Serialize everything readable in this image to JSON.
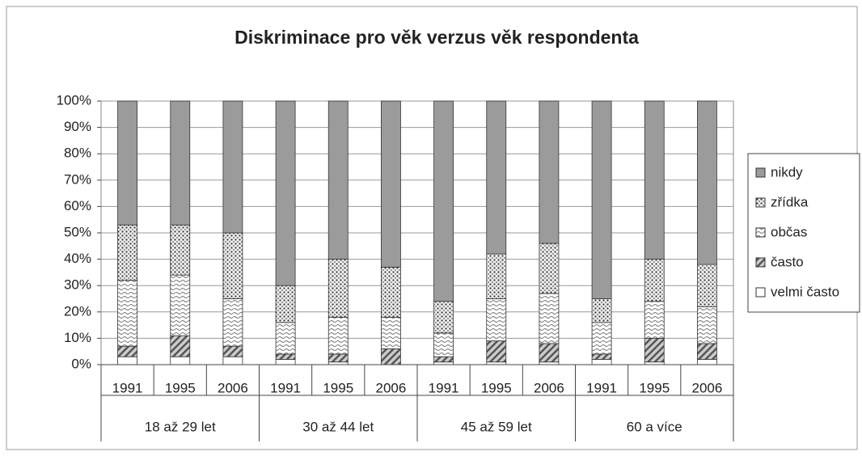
{
  "chart_data": {
    "type": "stacked_bar",
    "title": "Diskriminace pro věk verzus věk respondenta",
    "categories": [
      "1991",
      "1995",
      "2006",
      "1991",
      "1995",
      "2006",
      "1991",
      "1995",
      "2006",
      "1991",
      "1995",
      "2006"
    ],
    "groups": [
      "18 až 29 let",
      "30 až 44 let",
      "45 až 59 let",
      "60 a více"
    ],
    "series": [
      {
        "name": "velmi často",
        "color": "#ffffff",
        "pattern": "none",
        "values": [
          3,
          3,
          3,
          2,
          1,
          0,
          1,
          1,
          1,
          2,
          1,
          2
        ]
      },
      {
        "name": "často",
        "color": "#8a8a8a",
        "pattern": "hatch",
        "values": [
          4,
          8,
          4,
          2,
          3,
          6,
          2,
          8,
          7,
          2,
          9,
          6
        ]
      },
      {
        "name": "občas",
        "color": "#9a9a9a",
        "pattern": "waves",
        "values": [
          25,
          23,
          18,
          12,
          14,
          12,
          9,
          16,
          19,
          12,
          14,
          14
        ]
      },
      {
        "name": "zřídka",
        "color": "#555555",
        "pattern": "dots",
        "values": [
          21,
          19,
          25,
          14,
          22,
          19,
          12,
          17,
          19,
          9,
          16,
          16
        ]
      },
      {
        "name": "nikdy",
        "color": "#9b9b9b",
        "pattern": "solid",
        "values": [
          47,
          47,
          50,
          70,
          60,
          63,
          76,
          58,
          54,
          75,
          60,
          62
        ]
      }
    ],
    "ylim": [
      0,
      100
    ],
    "yticks": [
      {
        "value": 0,
        "label": "0%"
      },
      {
        "value": 10,
        "label": "10%"
      },
      {
        "value": 20,
        "label": "20%"
      },
      {
        "value": 30,
        "label": "30%"
      },
      {
        "value": 40,
        "label": "40%"
      },
      {
        "value": 50,
        "label": "50%"
      },
      {
        "value": 60,
        "label": "60%"
      },
      {
        "value": 70,
        "label": "70%"
      },
      {
        "value": 80,
        "label": "80%"
      },
      {
        "value": 90,
        "label": "90%"
      },
      {
        "value": 100,
        "label": "100%"
      }
    ],
    "grid": true,
    "legend": "right"
  }
}
